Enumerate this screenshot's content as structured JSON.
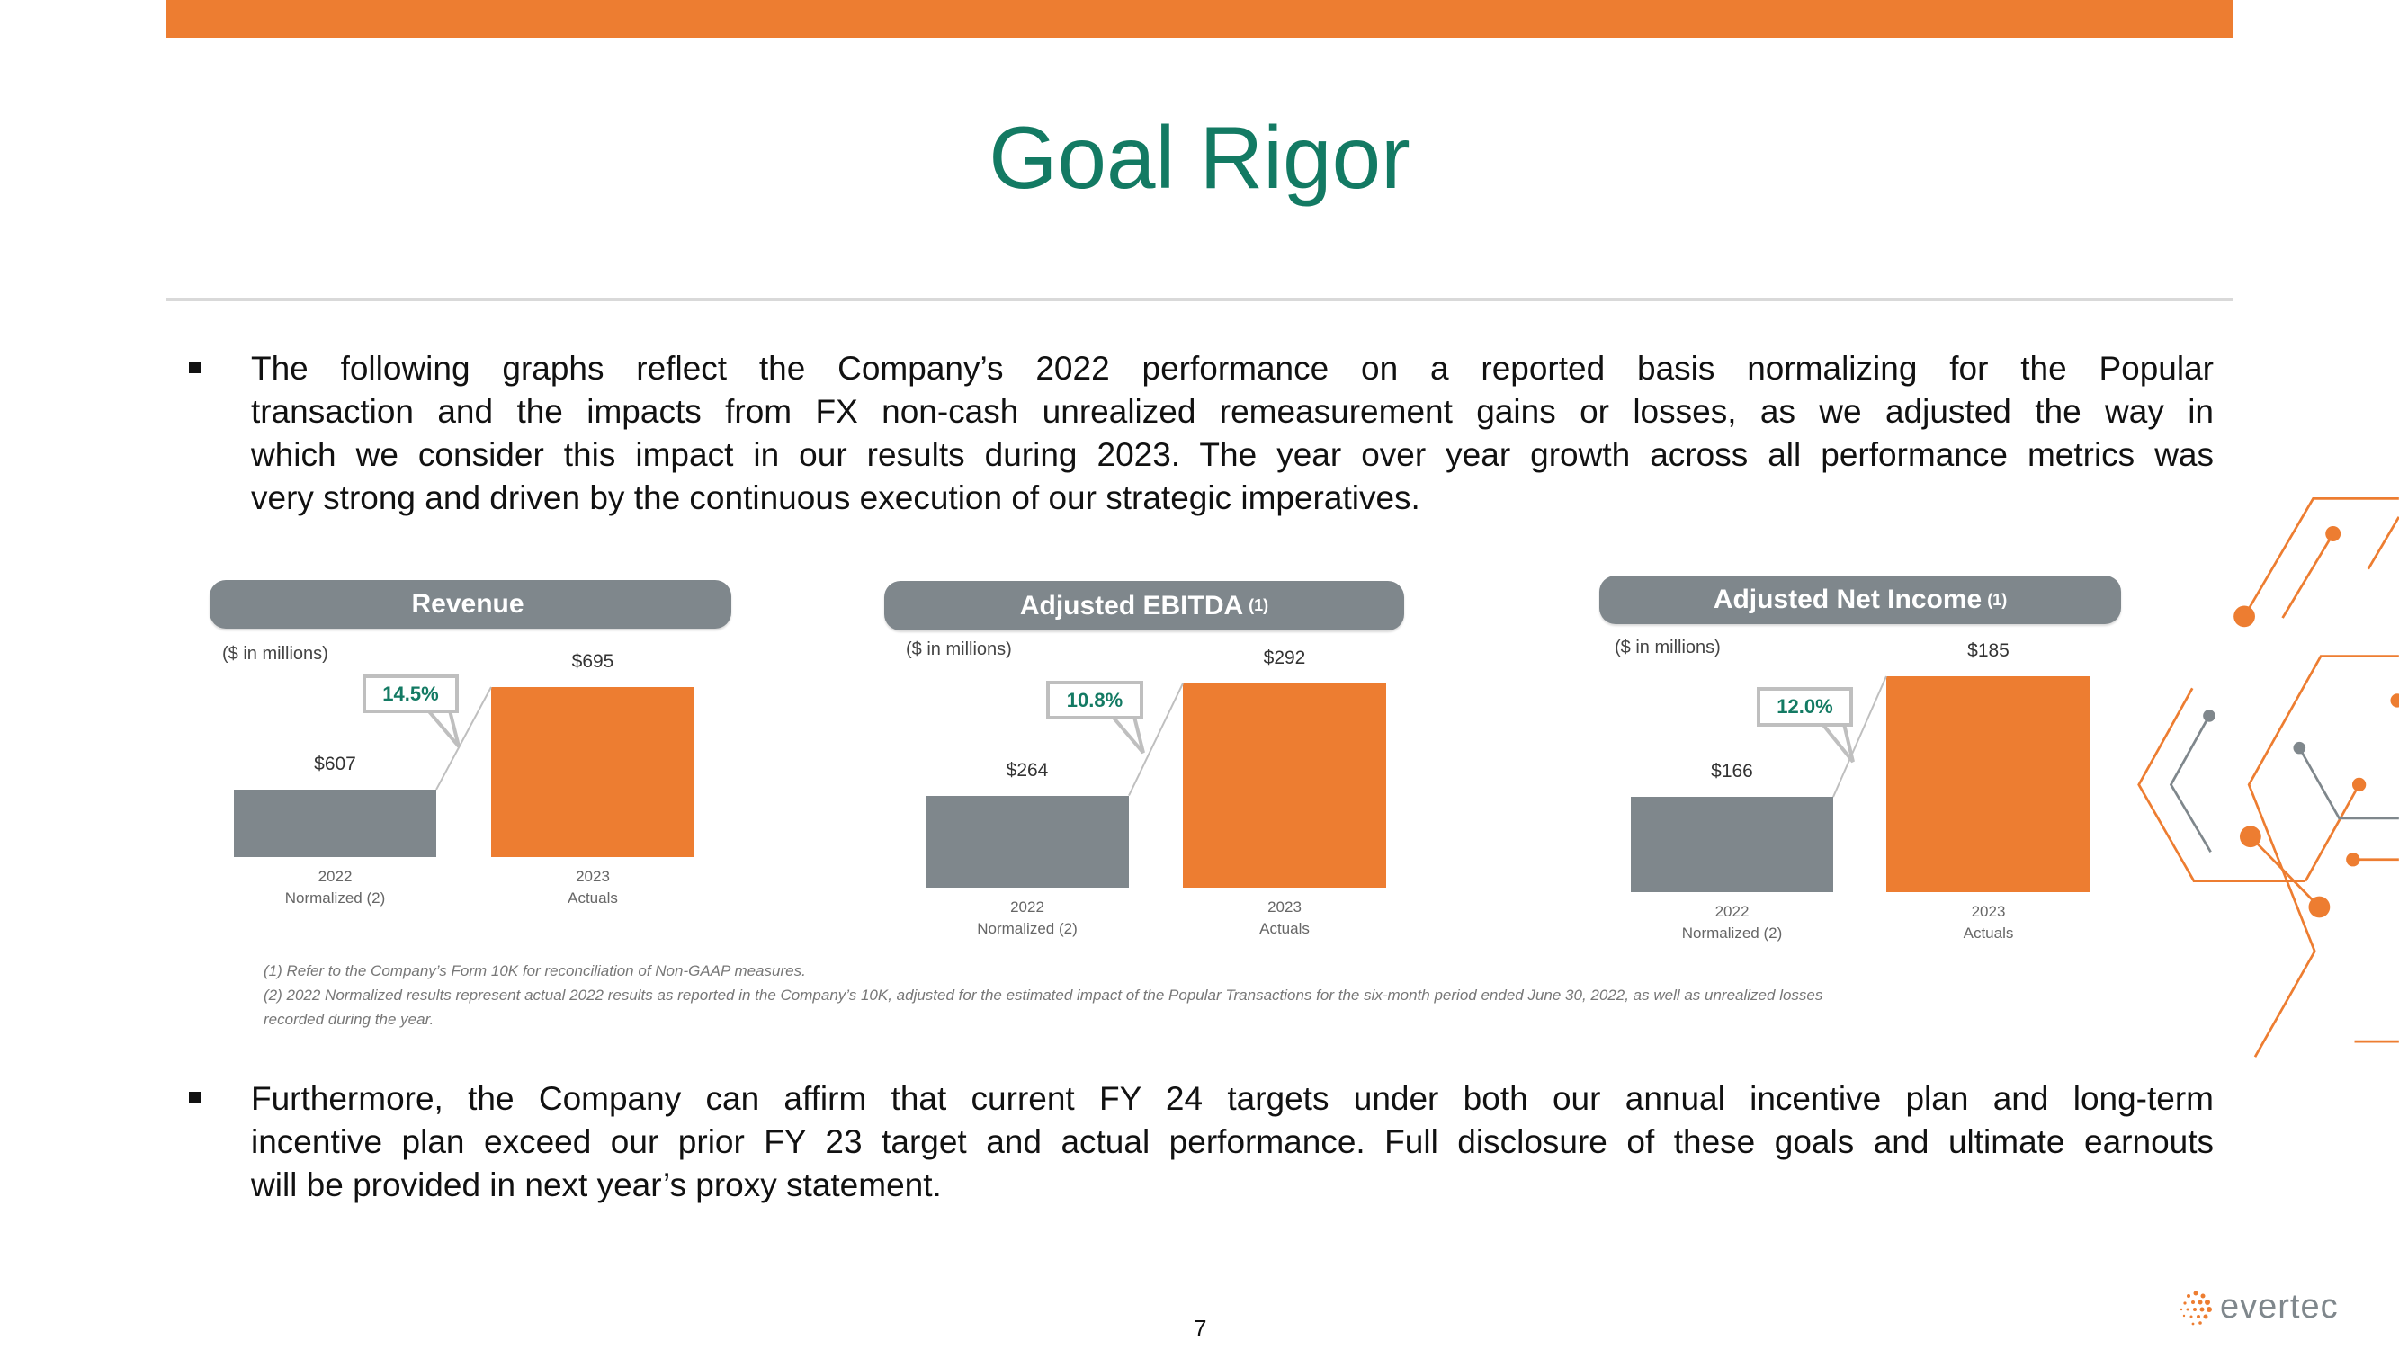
{
  "title": "Goal Rigor",
  "colors": {
    "accent_orange": "#ed7d31",
    "title_teal": "#137a63",
    "bar_gray": "#7f878c"
  },
  "bullet1": {
    "icon": "square-bullet-icon",
    "lines": [
      "The following graphs reflect the Company’s 2022 performance on a reported basis normalizing for the Popular",
      "transaction and the impacts from FX non-cash unrealized remeasurement gains or losses, as we adjusted the way in",
      "which we consider this impact in our results during 2023. The year over year growth across all performance metrics was",
      "very strong and driven by the continuous execution of our strategic imperatives."
    ]
  },
  "chart_data": [
    {
      "type": "bar",
      "title": "Revenue",
      "title_note": "",
      "units": "($ in millions)",
      "categories": [
        [
          "2022",
          "Normalized (2)"
        ],
        [
          "2023",
          "Actuals"
        ]
      ],
      "values": [
        607,
        695
      ],
      "value_labels": [
        "$607",
        "$695"
      ],
      "growth": "14.5%",
      "bar_colors": [
        "#7f878c",
        "#ed7d31"
      ]
    },
    {
      "type": "bar",
      "title": "Adjusted EBITDA",
      "title_note": "(1)",
      "units": "($ in millions)",
      "categories": [
        [
          "2022",
          "Normalized (2)"
        ],
        [
          "2023",
          "Actuals"
        ]
      ],
      "values": [
        264,
        292
      ],
      "value_labels": [
        "$264",
        "$292"
      ],
      "growth": "10.8%",
      "bar_colors": [
        "#7f878c",
        "#ed7d31"
      ]
    },
    {
      "type": "bar",
      "title": "Adjusted Net Income",
      "title_note": "(1)",
      "units": "($ in millions)",
      "categories": [
        [
          "2022",
          "Normalized (2)"
        ],
        [
          "2023",
          "Actuals"
        ]
      ],
      "values": [
        166,
        185
      ],
      "value_labels": [
        "$166",
        "$185"
      ],
      "growth": "12.0%",
      "bar_colors": [
        "#7f878c",
        "#ed7d31"
      ]
    }
  ],
  "footnotes": [
    "(1) Refer to the Company’s Form 10K for reconciliation of Non-GAAP measures.",
    "(2) 2022 Normalized results represent actual 2022 results as reported in the Company’s 10K, adjusted for the estimated impact of the Popular Transactions for the six-month period ended June 30, 2022, as well as unrealized losses",
    "recorded during the year."
  ],
  "bullet2": {
    "icon": "square-bullet-icon",
    "lines": [
      "Furthermore, the Company can affirm that current FY 24 targets under both our annual incentive plan and long-term",
      "incentive plan exceed our prior FY 23 target and actual performance. Full disclosure of these goals and ultimate earnouts",
      "will be provided in next year’s proxy statement."
    ]
  },
  "page_number": "7",
  "logo": {
    "text": "evertec",
    "icon": "evertec-dots-logo-icon"
  }
}
